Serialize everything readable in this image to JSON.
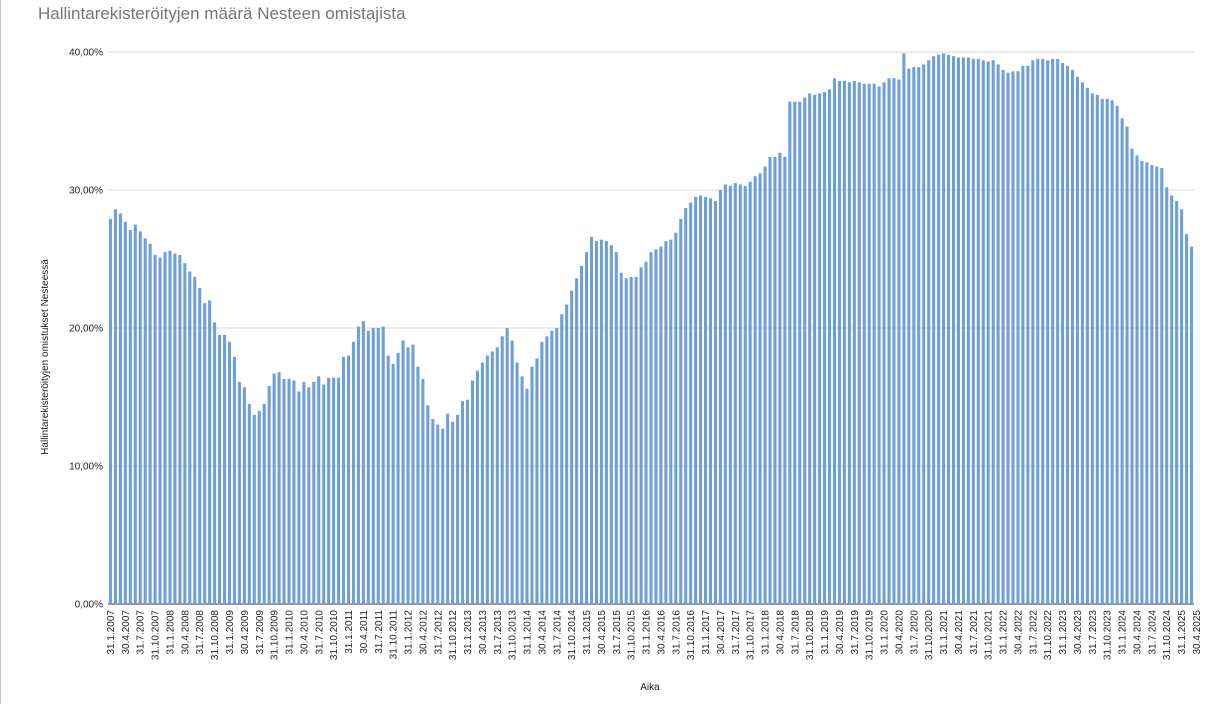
{
  "chart_data": {
    "type": "bar",
    "title": "Hallintarekisteröityjen määrä Nesteen omistajista",
    "xlabel": "Aika",
    "ylabel": "Hallintarekisteröityjen omistukset Nesteessä",
    "ylim": [
      0,
      40
    ],
    "yticks": [
      "0,00%",
      "10,00%",
      "20,00%",
      "30,00%",
      "40,00%"
    ],
    "grid": true,
    "legend": "none",
    "bar_color": "#6f9fd8",
    "x_tick_labels": [
      "31.1.2007",
      "30.4.2007",
      "31.7.2007",
      "31.10.2007",
      "31.1.2008",
      "30.4.2008",
      "31.7.2008",
      "31.10.2008",
      "31.1.2009",
      "30.4.2009",
      "31.7.2009",
      "31.10.2009",
      "31.1.2010",
      "30.4.2010",
      "31.7.2010",
      "31.10.2010",
      "31.1.2011",
      "30.4.2011",
      "31.7.2011",
      "31.10.2011",
      "31.1.2012",
      "30.4.2012",
      "31.7.2012",
      "31.10.2012",
      "31.1.2013",
      "30.4.2013",
      "31.7.2013",
      "31.10.2013",
      "31.1.2014",
      "30.4.2014",
      "31.7.2014",
      "31.10.2014",
      "31.1.2015",
      "30.4.2015",
      "31.7.2015",
      "31.10.2015",
      "31.1.2016",
      "30.4.2016",
      "31.7.2016",
      "31.10.2016",
      "31.1.2017",
      "30.4.2017",
      "31.7.2017",
      "31.10.2017",
      "31.1.2018",
      "30.4.2018",
      "31.7.2018",
      "31.10.2018",
      "31.1.2019",
      "30.4.2019",
      "31.7.2019",
      "31.10.2019",
      "31.1.2020",
      "30.4.2020",
      "31.7.2020",
      "31.10.2020",
      "31.1.2021",
      "30.4.2021",
      "31.7.2021",
      "31.10.2021",
      "31.1.2022",
      "30.4.2022",
      "31.7.2022",
      "31.10.2022",
      "31.1.2023",
      "30.4.2023",
      "31.7.2023",
      "31.10.2023",
      "31.1.2024",
      "30.4.2024",
      "31.7.2024",
      "31.10.2024",
      "31.1.2025",
      "30.4.2025"
    ],
    "values": [
      27.9,
      28.6,
      28.3,
      27.7,
      27.1,
      27.5,
      27.0,
      26.5,
      26.1,
      25.3,
      25.1,
      25.5,
      25.6,
      25.4,
      25.3,
      24.7,
      24.1,
      23.7,
      22.9,
      21.8,
      22.0,
      20.4,
      19.5,
      19.5,
      19.0,
      17.9,
      16.1,
      15.7,
      14.5,
      13.7,
      14.0,
      14.5,
      15.8,
      16.7,
      16.8,
      16.3,
      16.3,
      16.2,
      15.4,
      16.1,
      15.7,
      16.1,
      16.5,
      15.9,
      16.4,
      16.4,
      16.4,
      17.9,
      18.0,
      19.0,
      20.1,
      20.5,
      19.8,
      20.0,
      20.0,
      20.1,
      18.0,
      17.4,
      18.2,
      19.1,
      18.6,
      18.8,
      17.2,
      16.3,
      14.4,
      13.4,
      13.0,
      12.7,
      13.8,
      13.2,
      13.7,
      14.7,
      14.8,
      16.2,
      16.9,
      17.5,
      18.0,
      18.3,
      18.6,
      19.4,
      20.0,
      19.1,
      17.5,
      16.5,
      15.6,
      17.2,
      17.8,
      19.0,
      19.4,
      19.8,
      20.0,
      21.0,
      21.7,
      22.7,
      23.6,
      24.5,
      25.5,
      26.6,
      26.3,
      26.4,
      26.3,
      26.0,
      25.5,
      24.0,
      23.6,
      23.7,
      23.7,
      24.4,
      24.8,
      25.5,
      25.7,
      25.9,
      26.3,
      26.4,
      26.9,
      27.9,
      28.7,
      29.1,
      29.5,
      29.6,
      29.5,
      29.4,
      29.2,
      30.0,
      30.4,
      30.3,
      30.5,
      30.4,
      30.3,
      30.6,
      31.0,
      31.2,
      31.7,
      32.4,
      32.4,
      32.7,
      32.4,
      36.4,
      36.4,
      36.4,
      36.7,
      37.0,
      36.9,
      37.0,
      37.1,
      37.3,
      38.1,
      37.9,
      37.9,
      37.8,
      37.9,
      37.8,
      37.7,
      37.7,
      37.7,
      37.5,
      37.8,
      38.1,
      38.1,
      38.0,
      39.9,
      38.8,
      38.9,
      38.9,
      39.1,
      39.4,
      39.7,
      39.8,
      39.9,
      39.8,
      39.7,
      39.6,
      39.6,
      39.6,
      39.5,
      39.5,
      39.4,
      39.3,
      39.4,
      39.1,
      38.7,
      38.5,
      38.6,
      38.6,
      39.0,
      39.0,
      39.4,
      39.5,
      39.5,
      39.4,
      39.5,
      39.5,
      39.2,
      39.0,
      38.7,
      38.2,
      37.8,
      37.4,
      37.0,
      36.9,
      36.6,
      36.6,
      36.5,
      36.1,
      35.2,
      34.6,
      33.0,
      32.5,
      32.1,
      32.0,
      31.8,
      31.7,
      31.6,
      30.2,
      29.6,
      29.2,
      28.6,
      26.8,
      25.9
    ]
  }
}
